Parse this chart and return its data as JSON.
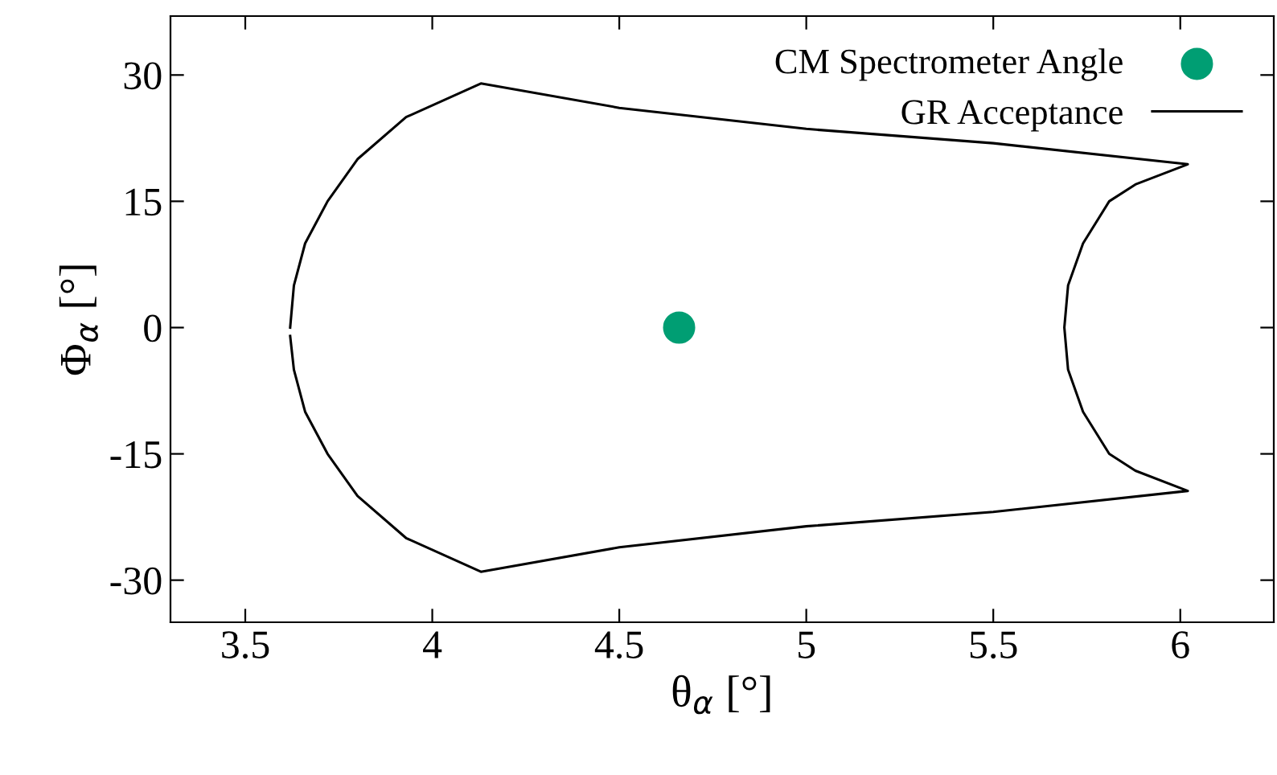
{
  "chart_data": {
    "type": "line",
    "xlabel": "θ$_{α}$ [°]",
    "ylabel": "Φ$_{α}$ [°]",
    "xlim": [
      3.3,
      6.25
    ],
    "xticks": [
      3.5,
      4,
      4.5,
      5,
      5.5,
      6
    ],
    "ylim": [
      -35,
      37
    ],
    "yticks": [
      -30,
      -15,
      0,
      15,
      30
    ],
    "legend": "top right",
    "grid": false,
    "series": [
      {
        "name": "CM Spectrometer Angle",
        "type": "scatter",
        "marker": "circle",
        "color": "#009e73",
        "x": [
          4.66
        ],
        "values": [
          0
        ]
      },
      {
        "name": "GR Acceptance",
        "marker": "none",
        "color": "#000000",
        "x": [
          3.62,
          3.63,
          3.66,
          3.72,
          3.8,
          3.93,
          4.13,
          4.5,
          5.0,
          5.5,
          6.02,
          5.88,
          5.81,
          5.74,
          5.7,
          5.69,
          5.7,
          5.74,
          5.81,
          5.88,
          6.02,
          5.5,
          5.0,
          4.5,
          4.13,
          3.93,
          3.8,
          3.72,
          3.66,
          3.63,
          3.62
        ],
        "values": [
          0,
          5,
          10,
          15,
          20,
          25,
          29,
          26.1,
          23.6,
          21.9,
          19.4,
          17,
          15,
          10,
          5,
          0,
          -5,
          -10,
          -15,
          -17,
          -19.4,
          -21.9,
          -23.6,
          -26.1,
          -29,
          -25,
          -20,
          -15,
          -10,
          -5,
          -1
        ]
      }
    ]
  }
}
